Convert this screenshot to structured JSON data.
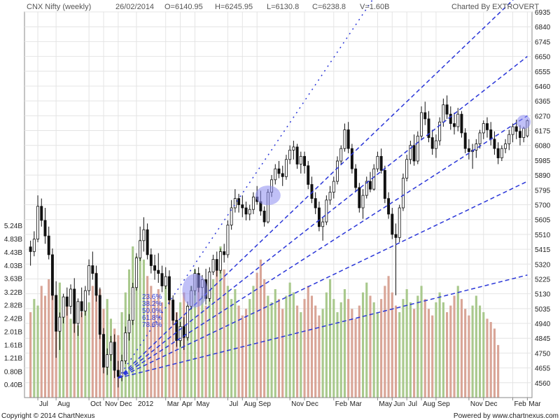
{
  "header": {
    "title": "CNX Nifty (weekly)",
    "date": "26/02/2014",
    "open": "O=6140.95",
    "high": "H=6245.95",
    "low": "L=6130.8",
    "close": "C=6238.8",
    "volume": "V=1.60B",
    "credit": "Charted By EXTROVERT"
  },
  "footer": {
    "copyright": "Copyright © 2014 ChartNexus",
    "powered": "Powered by www.chartnexus.com"
  },
  "colors": {
    "up": "#1a1a1a",
    "down": "#1a1a1a",
    "vol_up": "#a9c98d",
    "vol_down": "#d9a597",
    "trend": "#2a36d8",
    "highlight": "#8c8cf0",
    "grid": "#e4e4e4"
  },
  "chart_data": {
    "type": "candlestick",
    "price_axis": {
      "ticks": [
        4560,
        4655,
        4750,
        4845,
        4940,
        5035,
        5130,
        5225,
        5320,
        5415,
        5510,
        5605,
        5700,
        5795,
        5890,
        5985,
        6080,
        6175,
        6270,
        6365,
        6460,
        6555,
        6650,
        6745,
        6840,
        6935
      ],
      "range": [
        4465,
        6935
      ]
    },
    "volume_axis": {
      "ticks": [
        "0.40B",
        "0.80B",
        "1.21B",
        "1.61B",
        "2.01B",
        "2.42B",
        "2.82B",
        "3.22B",
        "3.63B",
        "4.03B",
        "4.43B",
        "4.83B",
        "5.24B"
      ]
    },
    "x_labels": [
      {
        "label": "Jul",
        "week": 3
      },
      {
        "label": "Aug",
        "week": 8
      },
      {
        "label": "Oct",
        "week": 17
      },
      {
        "label": "Nov",
        "week": 21
      },
      {
        "label": "Dec",
        "week": 25
      },
      {
        "label": "2012",
        "week": 30
      },
      {
        "label": "Mar",
        "week": 38
      },
      {
        "label": "Apr",
        "week": 42
      },
      {
        "label": "May",
        "week": 46
      },
      {
        "label": "Jul",
        "week": 55
      },
      {
        "label": "Aug",
        "week": 59
      },
      {
        "label": "Sep",
        "week": 63
      },
      {
        "label": "Nov",
        "week": 72
      },
      {
        "label": "Dec",
        "week": 76
      },
      {
        "label": "Feb",
        "week": 84
      },
      {
        "label": "Mar",
        "week": 88
      },
      {
        "label": "May",
        "week": 96
      },
      {
        "label": "Jun",
        "week": 100
      },
      {
        "label": "Jul",
        "week": 104
      },
      {
        "label": "Aug",
        "week": 108
      },
      {
        "label": "Sep",
        "week": 112
      },
      {
        "label": "Nov",
        "week": 121
      },
      {
        "label": "Dec",
        "week": 125
      },
      {
        "label": "Feb",
        "week": 133
      },
      {
        "label": "Mar",
        "week": 137
      }
    ],
    "weeks": 137,
    "candles": [
      [
        5430,
        5470,
        5310,
        5400
      ],
      [
        5400,
        5530,
        5370,
        5480
      ],
      [
        5480,
        5760,
        5460,
        5690
      ],
      [
        5690,
        5740,
        5560,
        5600
      ],
      [
        5600,
        5680,
        5450,
        5500
      ],
      [
        5500,
        5560,
        5350,
        5380
      ],
      [
        5380,
        5420,
        5090,
        5120
      ],
      [
        5120,
        5210,
        4720,
        4890
      ],
      [
        4890,
        5010,
        4770,
        4980
      ],
      [
        4980,
        5130,
        4940,
        5110
      ],
      [
        5110,
        5170,
        4990,
        5050
      ],
      [
        5050,
        5190,
        5000,
        5160
      ],
      [
        5160,
        5230,
        4880,
        4940
      ],
      [
        4940,
        5100,
        4860,
        5080
      ],
      [
        5080,
        5170,
        4980,
        5020
      ],
      [
        5020,
        5180,
        4990,
        5150
      ],
      [
        5150,
        5350,
        5120,
        5310
      ],
      [
        5310,
        5400,
        5220,
        5260
      ],
      [
        5260,
        5310,
        5080,
        5120
      ],
      [
        5120,
        5170,
        4840,
        4870
      ],
      [
        4870,
        4910,
        4620,
        4660
      ],
      [
        4660,
        4780,
        4610,
        4740
      ],
      [
        4740,
        4860,
        4700,
        4820
      ],
      [
        4820,
        4870,
        4590,
        4640
      ],
      [
        4640,
        4700,
        4530,
        4600
      ],
      [
        4600,
        4740,
        4570,
        4700
      ],
      [
        4700,
        4920,
        4680,
        4880
      ],
      [
        4880,
        5000,
        4830,
        4960
      ],
      [
        4960,
        5200,
        4930,
        5170
      ],
      [
        5170,
        5390,
        5150,
        5360
      ],
      [
        5360,
        5560,
        5340,
        5470
      ],
      [
        5470,
        5620,
        5400,
        5540
      ],
      [
        5540,
        5580,
        5350,
        5380
      ],
      [
        5380,
        5420,
        5260,
        5310
      ],
      [
        5310,
        5380,
        5220,
        5280
      ],
      [
        5280,
        5390,
        5200,
        5260
      ],
      [
        5260,
        5310,
        5140,
        5180
      ],
      [
        5180,
        5300,
        5160,
        5240
      ],
      [
        5240,
        5280,
        5060,
        5090
      ],
      [
        5090,
        5120,
        4930,
        4960
      ],
      [
        4960,
        5010,
        4790,
        4830
      ],
      [
        4830,
        4950,
        4790,
        4920
      ],
      [
        4920,
        4980,
        4770,
        4850
      ],
      [
        4850,
        5080,
        4830,
        5050
      ],
      [
        5050,
        5180,
        5030,
        5150
      ],
      [
        5150,
        5290,
        5120,
        5260
      ],
      [
        5260,
        5300,
        5140,
        5170
      ],
      [
        5170,
        5250,
        5100,
        5220
      ],
      [
        5220,
        5290,
        5060,
        5100
      ],
      [
        5100,
        5300,
        5080,
        5270
      ],
      [
        5270,
        5380,
        5250,
        5350
      ],
      [
        5350,
        5400,
        5240,
        5280
      ],
      [
        5280,
        5420,
        5260,
        5400
      ],
      [
        5400,
        5450,
        5330,
        5380
      ],
      [
        5380,
        5600,
        5360,
        5570
      ],
      [
        5570,
        5730,
        5540,
        5680
      ],
      [
        5680,
        5800,
        5650,
        5740
      ],
      [
        5740,
        5770,
        5650,
        5700
      ],
      [
        5700,
        5760,
        5620,
        5680
      ],
      [
        5680,
        5720,
        5600,
        5640
      ],
      [
        5640,
        5700,
        5600,
        5670
      ],
      [
        5670,
        5780,
        5640,
        5750
      ],
      [
        5750,
        5820,
        5700,
        5720
      ],
      [
        5720,
        5790,
        5630,
        5660
      ],
      [
        5660,
        5690,
        5560,
        5590
      ],
      [
        5590,
        5800,
        5580,
        5780
      ],
      [
        5780,
        5890,
        5750,
        5860
      ],
      [
        5860,
        5960,
        5830,
        5930
      ],
      [
        5930,
        5980,
        5870,
        5900
      ],
      [
        5900,
        5950,
        5820,
        5880
      ],
      [
        5880,
        6020,
        5860,
        5990
      ],
      [
        5990,
        6080,
        5960,
        6050
      ],
      [
        6050,
        6110,
        5990,
        6070
      ],
      [
        6070,
        6090,
        5930,
        5960
      ],
      [
        5960,
        6040,
        5900,
        6010
      ],
      [
        6010,
        6040,
        5900,
        5950
      ],
      [
        5950,
        5980,
        5800,
        5830
      ],
      [
        5830,
        5880,
        5710,
        5740
      ],
      [
        5740,
        5780,
        5640,
        5680
      ],
      [
        5680,
        5720,
        5530,
        5560
      ],
      [
        5560,
        5620,
        5470,
        5590
      ],
      [
        5590,
        5760,
        5570,
        5730
      ],
      [
        5730,
        5820,
        5700,
        5780
      ],
      [
        5780,
        5880,
        5740,
        5850
      ],
      [
        5850,
        6010,
        5830,
        5980
      ],
      [
        5980,
        6080,
        5960,
        6060
      ],
      [
        6060,
        6220,
        6040,
        6180
      ],
      [
        6180,
        6230,
        6030,
        6060
      ],
      [
        6060,
        6090,
        5900,
        5930
      ],
      [
        5930,
        5960,
        5780,
        5810
      ],
      [
        5810,
        5840,
        5650,
        5680
      ],
      [
        5680,
        5800,
        5610,
        5760
      ],
      [
        5760,
        5880,
        5740,
        5850
      ],
      [
        5850,
        5910,
        5780,
        5800
      ],
      [
        5800,
        5960,
        5790,
        5930
      ],
      [
        5930,
        6040,
        5910,
        6010
      ],
      [
        6010,
        6060,
        5900,
        5920
      ],
      [
        5920,
        5950,
        5710,
        5740
      ],
      [
        5740,
        5780,
        5610,
        5640
      ],
      [
        5640,
        5680,
        5480,
        5510
      ],
      [
        5510,
        5580,
        5120,
        5490
      ],
      [
        5490,
        5700,
        5460,
        5680
      ],
      [
        5680,
        5900,
        5660,
        5870
      ],
      [
        5870,
        6020,
        5850,
        5990
      ],
      [
        5990,
        6110,
        5960,
        6080
      ],
      [
        6080,
        6150,
        5950,
        5980
      ],
      [
        5980,
        6170,
        5960,
        6140
      ],
      [
        6140,
        6330,
        6120,
        6290
      ],
      [
        6290,
        6360,
        6210,
        6250
      ],
      [
        6250,
        6300,
        6100,
        6130
      ],
      [
        6130,
        6180,
        6020,
        6060
      ],
      [
        6060,
        6150,
        6000,
        6110
      ],
      [
        6110,
        6260,
        6080,
        6230
      ],
      [
        6230,
        6380,
        6200,
        6340
      ],
      [
        6340,
        6400,
        6250,
        6280
      ],
      [
        6280,
        6330,
        6180,
        6220
      ],
      [
        6220,
        6290,
        6150,
        6200
      ],
      [
        6200,
        6320,
        6170,
        6280
      ],
      [
        6280,
        6300,
        6130,
        6160
      ],
      [
        6160,
        6190,
        6030,
        6060
      ],
      [
        6060,
        6120,
        5990,
        6040
      ],
      [
        6040,
        6090,
        5930,
        6050
      ],
      [
        6050,
        6120,
        6000,
        6090
      ],
      [
        6090,
        6180,
        6060,
        6160
      ],
      [
        6160,
        6240,
        6120,
        6220
      ],
      [
        6220,
        6260,
        6130,
        6180
      ],
      [
        6180,
        6230,
        6080,
        6120
      ],
      [
        6120,
        6170,
        6020,
        6060
      ],
      [
        6060,
        6100,
        5960,
        6000
      ],
      [
        6000,
        6080,
        5980,
        6060
      ],
      [
        6060,
        6120,
        6030,
        6090
      ],
      [
        6090,
        6180,
        6050,
        6150
      ],
      [
        6150,
        6220,
        6100,
        6200
      ],
      [
        6200,
        6245,
        6120,
        6170
      ],
      [
        6170,
        6210,
        6080,
        6130
      ],
      [
        6130,
        6200,
        6100,
        6190
      ],
      [
        6141,
        6246,
        6131,
        6239
      ]
    ],
    "volumes": [
      2.6,
      3.0,
      2.8,
      3.4,
      3.1,
      3.6,
      3.2,
      2.9,
      3.5,
      2.7,
      3.0,
      2.4,
      2.8,
      2.2,
      2.6,
      3.1,
      2.9,
      3.4,
      3.8,
      3.3,
      2.7,
      3.0,
      2.4,
      2.1,
      1.9,
      2.6,
      3.2,
      3.9,
      4.6,
      4.3,
      4.8,
      4.2,
      3.7,
      3.4,
      3.0,
      3.3,
      2.9,
      3.5,
      3.1,
      2.7,
      2.6,
      2.9,
      3.2,
      2.8,
      3.4,
      3.9,
      3.5,
      3.1,
      2.8,
      3.2,
      3.6,
      4.1,
      4.6,
      3.9,
      3.4,
      3.0,
      3.3,
      2.8,
      2.5,
      2.7,
      3.0,
      3.4,
      3.8,
      4.2,
      3.6,
      3.1,
      2.9,
      3.3,
      3.0,
      2.7,
      3.1,
      3.5,
      3.2,
      2.8,
      2.6,
      3.0,
      3.4,
      3.1,
      2.8,
      2.5,
      2.7,
      3.2,
      3.6,
      3.0,
      2.6,
      2.9,
      3.3,
      3.0,
      2.7,
      2.4,
      2.8,
      3.2,
      3.5,
      3.1,
      2.9,
      2.6,
      3.0,
      3.4,
      3.7,
      3.2,
      2.8,
      2.6,
      3.0,
      3.3,
      2.9,
      2.7,
      3.1,
      3.4,
      3.0,
      2.7,
      2.5,
      2.9,
      3.2,
      2.9,
      2.6,
      2.8,
      3.1,
      3.4,
      3.0,
      2.7,
      2.5,
      2.8,
      3.1,
      2.8,
      2.6,
      2.4,
      2.3,
      2.1,
      1.6
    ],
    "fib_levels": [
      "23.6%",
      "38.2%",
      "50.0%",
      "61.8%",
      "78.6%"
    ],
    "trendlines": [
      {
        "from": [
          25,
          4590
        ],
        "to": [
          100,
          7200
        ]
      },
      {
        "from": [
          25,
          4590
        ],
        "to": [
          137,
          7100
        ]
      },
      {
        "from": [
          25,
          4590
        ],
        "to": [
          137,
          6650
        ]
      },
      {
        "from": [
          25,
          4590
        ],
        "to": [
          137,
          6270
        ]
      },
      {
        "from": [
          25,
          4590
        ],
        "to": [
          137,
          5850
        ]
      },
      {
        "from": [
          25,
          4590
        ],
        "to": [
          137,
          5250
        ]
      }
    ],
    "highlights": [
      {
        "week": 46,
        "price": 5150
      },
      {
        "week": 66,
        "price": 5760
      },
      {
        "week": 136,
        "price": 6230
      }
    ]
  }
}
